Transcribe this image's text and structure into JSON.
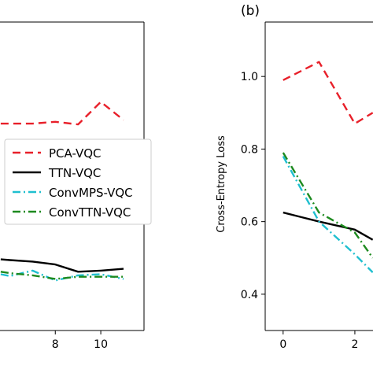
{
  "chart_data": [
    {
      "type": "line",
      "panel_label": "",
      "title": "",
      "xlabel": "",
      "ylabel": "",
      "xlim": [
        5.5,
        11.9
      ],
      "ylim": [
        0.3,
        1.15
      ],
      "x_ticks": [
        8,
        10
      ],
      "x_tick_labels": [
        "8",
        "10"
      ],
      "grid": false,
      "legend": {
        "placement": "center-right",
        "entries": [
          "PCA-VQC",
          "TTN-VQC",
          "ConvMPS-VQC",
          "ConvTTN-VQC"
        ]
      },
      "series": [
        {
          "name": "PCA-VQC",
          "color": "#e8202a",
          "dash": "dashed",
          "x": [
            5.6,
            6,
            7,
            8,
            9,
            10,
            11
          ],
          "y": [
            0.87,
            0.87,
            0.87,
            0.875,
            0.868,
            0.93,
            0.88
          ]
        },
        {
          "name": "TTN-VQC",
          "color": "#000000",
          "dash": "solid",
          "x": [
            5.6,
            6,
            7,
            8,
            9,
            10,
            11
          ],
          "y": [
            0.496,
            0.494,
            0.49,
            0.482,
            0.462,
            0.465,
            0.47
          ]
        },
        {
          "name": "ConvMPS-VQC",
          "color": "#1fbfcf",
          "dash": "dashdot",
          "x": [
            5.6,
            6,
            7,
            8,
            9,
            10,
            11
          ],
          "y": [
            0.455,
            0.45,
            0.465,
            0.438,
            0.452,
            0.455,
            0.442
          ]
        },
        {
          "name": "ConvTTN-VQC",
          "color": "#1d8a1f",
          "dash": "dashdot",
          "x": [
            5.6,
            6,
            7,
            8,
            9,
            10,
            11
          ],
          "y": [
            0.462,
            0.458,
            0.452,
            0.442,
            0.448,
            0.448,
            0.448
          ]
        }
      ]
    },
    {
      "type": "line",
      "panel_label": "(b)",
      "title": "",
      "xlabel": "",
      "ylabel": "Cross-Entropy Loss",
      "xlim": [
        -0.5,
        2.55
      ],
      "ylim": [
        0.3,
        1.15
      ],
      "x_ticks": [
        0,
        2
      ],
      "x_tick_labels": [
        "0",
        "2"
      ],
      "y_ticks": [
        0.4,
        0.6,
        0.8,
        1.0
      ],
      "y_tick_labels": [
        "0.4",
        "0.6",
        "0.8",
        "1.0"
      ],
      "grid": false,
      "series": [
        {
          "name": "PCA-VQC",
          "color": "#e8202a",
          "dash": "dashed",
          "x": [
            0,
            1,
            2,
            2.5
          ],
          "y": [
            0.99,
            1.04,
            0.87,
            0.9
          ]
        },
        {
          "name": "TTN-VQC",
          "color": "#000000",
          "dash": "solid",
          "x": [
            0,
            1,
            2,
            2.5
          ],
          "y": [
            0.625,
            0.6,
            0.578,
            0.55
          ]
        },
        {
          "name": "ConvMPS-VQC",
          "color": "#1fbfcf",
          "dash": "dashdot",
          "x": [
            0,
            1,
            2,
            2.5
          ],
          "y": [
            0.78,
            0.6,
            0.51,
            0.46
          ]
        },
        {
          "name": "ConvTTN-VQC",
          "color": "#1d8a1f",
          "dash": "dashdot",
          "x": [
            0,
            1,
            2,
            2.5
          ],
          "y": [
            0.79,
            0.625,
            0.57,
            0.5
          ]
        }
      ]
    }
  ]
}
